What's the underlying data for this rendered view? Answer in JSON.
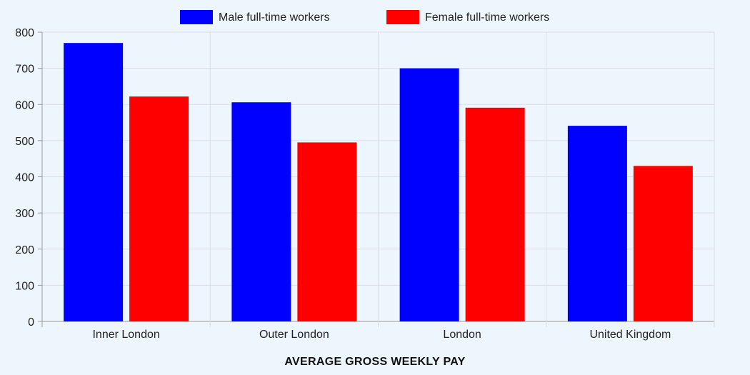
{
  "chart_data": {
    "type": "bar",
    "categories": [
      "Inner London",
      "Outer London",
      "London",
      "United Kingdom"
    ],
    "series": [
      {
        "name": "Male full-time workers",
        "color": "#0000ff",
        "values": [
          770,
          606,
          700,
          541
        ]
      },
      {
        "name": "Female full-time workers",
        "color": "#ff0000",
        "values": [
          622,
          495,
          591,
          430
        ]
      }
    ],
    "xlabel": "AVERAGE GROSS WEEKLY PAY",
    "ylabel": "",
    "ylim": [
      0,
      800
    ],
    "yticks": [
      0,
      100,
      200,
      300,
      400,
      500,
      600,
      700,
      800
    ],
    "grid": true,
    "legend_position": "top-center"
  }
}
